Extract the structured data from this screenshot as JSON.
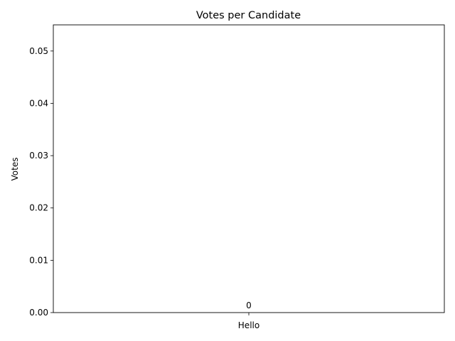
{
  "chart_data": {
    "type": "bar",
    "title": "Votes per Candidate",
    "xlabel": "",
    "ylabel": "Votes",
    "categories": [
      "Hello"
    ],
    "values": [
      0
    ],
    "data_labels": [
      "0"
    ],
    "ylim": [
      0,
      0.055
    ],
    "yticks": [
      0,
      0.01,
      0.02,
      0.03,
      0.04,
      0.05
    ],
    "ytick_labels": [
      "0.00",
      "0.01",
      "0.02",
      "0.03",
      "0.04",
      "0.05"
    ],
    "grid": false,
    "legend": "none",
    "colors": {
      "bar": "#1f77b4",
      "axis": "#000000",
      "background": "#ffffff"
    }
  }
}
